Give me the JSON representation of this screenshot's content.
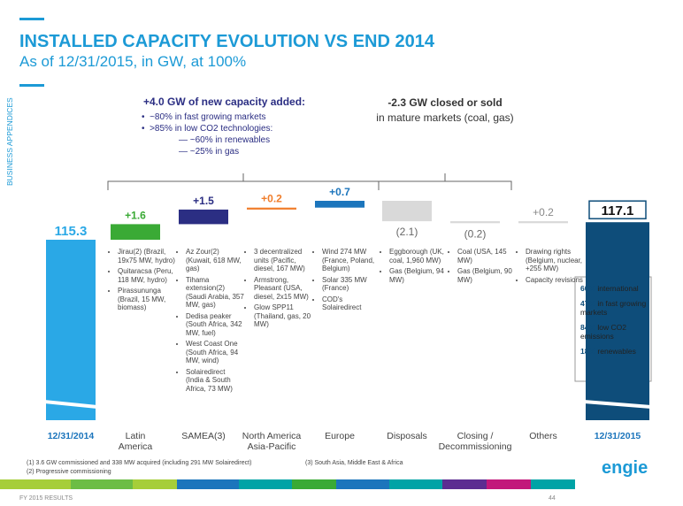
{
  "chart_data": {
    "type": "waterfall",
    "title": "INSTALLED CAPACITY EVOLUTION VS END 2014",
    "subtitle": "As of 12/31/2015, in GW, at 100%",
    "categories": [
      "12/31/2014",
      "Latin\nAmerica",
      "SAMEA(3)",
      "North America\nAsia-Pacific",
      "Europe",
      "Disposals",
      "Closing /\nDecommissioning",
      "Others",
      "12/31/2015"
    ],
    "values": [
      115.3,
      1.6,
      1.5,
      0.2,
      0.7,
      -2.1,
      -0.2,
      0.2,
      117.1
    ],
    "value_labels": [
      "115.3",
      "+1.6",
      "+1.5",
      "+0.2",
      "+0.7",
      "(2.1)",
      "(0.2)",
      "+0.2",
      "117.1"
    ],
    "bar_kinds": [
      "total",
      "step",
      "step",
      "step",
      "step",
      "step",
      "step",
      "step",
      "total"
    ],
    "colors": [
      "#2aa8e6",
      "#3aaa35",
      "#2b2e83",
      "#f07d2b",
      "#1c75bc",
      "#d9d9d9",
      "#d9d9d9",
      "#d9d9d9",
      "#0e4d7a"
    ],
    "label_colors": [
      "#ffffff",
      "#3aaa35",
      "#2b2e83",
      "#f07d2b",
      "#1c75bc",
      "#666666",
      "#666666",
      "#888888",
      "#111111"
    ],
    "notes": [
      [],
      [
        "Jirau(2) (Brazil, 19x75 MW, hydro)",
        "Quitaracsa (Peru, 118 MW, hydro)",
        "Pirassununga (Brazil, 15 MW, biomass)"
      ],
      [
        "Az Zour(2) (Kuwait, 618 MW, gas)",
        "Tihama extension(2) (Saudi Arabia, 357 MW, gas)",
        "Dedisa peaker (South Africa, 342 MW, fuel)",
        "West Coast One (South Africa, 94 MW, wind)",
        "Solairedirect (India & South Africa, 73 MW)"
      ],
      [
        "3 decentralized units (Pacific, diesel, 167 MW)",
        "Armstrong, Pleasant (USA, diesel, 2x15 MW)",
        "Glow SPP11 (Thailand, gas, 20 MW)"
      ],
      [
        "Wind 274 MW (France, Poland, Belgium)",
        "Solar 335 MW (France)",
        "COD's Solairedirect"
      ],
      [
        "Eggborough (UK, coal, 1,960 MW)",
        "Gas (Belgium, 94 MW)"
      ],
      [
        "Coal (USA, 145 MW)",
        "Gas (Belgium, 90 MW)"
      ],
      [
        "Drawing rights (Belgium, nuclear, +255 MW)",
        "Capacity revisions"
      ],
      []
    ],
    "added": {
      "head": "+4.0 GW of new capacity added:",
      "bullets": [
        "~80% in fast growing markets",
        ">85% in low CO2 technologies:"
      ],
      "sub": [
        "~60% in renewables",
        "~25% in gas"
      ]
    },
    "closed": [
      "-2.3 GW closed or sold",
      "in mature markets (coal, gas)"
    ],
    "breakdown": [
      {
        "pct": "60%",
        "text": "international"
      },
      {
        "pct": "47%",
        "text": "in fast growing markets"
      },
      {
        "pct": "84%",
        "text": "low CO2 emissions"
      },
      {
        "pct": "18%",
        "text": "renewables"
      }
    ]
  },
  "slide": {
    "side_label": "BUSINESS APPENDICES",
    "footnotes": [
      "(1)  3.6 GW commissioned and 338 MW acquired (including 291 MW Solairedirect)",
      "(2)  Progressive commissioning",
      "(3)  South Asia, Middle East & Africa"
    ],
    "footer": "FY 2015 RESULTS",
    "page": "44",
    "logo": "engie"
  }
}
